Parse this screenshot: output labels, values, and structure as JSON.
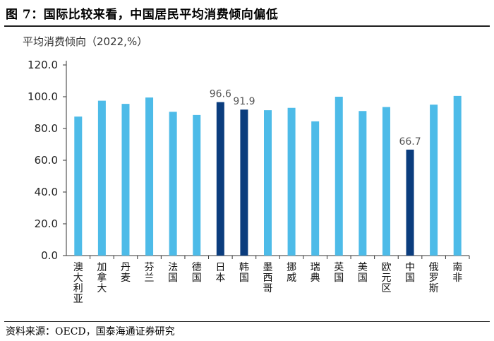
{
  "figure": {
    "title": "图 7：国际比较来看，中国居民平均消费倾向偏低",
    "source": "资料来源：OECD，国泰海通证券研究"
  },
  "chart_data": {
    "type": "bar",
    "title": "",
    "ylabel": "平均消费倾向（2022,%）",
    "xlabel": "",
    "ylim": [
      0,
      120
    ],
    "yticks": [
      0,
      20,
      40,
      60,
      80,
      100,
      120
    ],
    "ytick_labels": [
      "0.0",
      "20.0",
      "40.0",
      "60.0",
      "80.0",
      "100.0",
      "120.0"
    ],
    "categories": [
      "澳大利亚",
      "加拿大",
      "丹麦",
      "芬兰",
      "法国",
      "德国",
      "日本",
      "韩国",
      "墨西哥",
      "挪威",
      "瑞典",
      "英国",
      "美国",
      "欧元区",
      "中国",
      "俄罗斯",
      "南非"
    ],
    "values": [
      87.5,
      97.5,
      95.5,
      99.5,
      90.5,
      88.5,
      96.6,
      91.9,
      91.5,
      93.0,
      84.5,
      100.0,
      91.0,
      93.5,
      66.7,
      95.0,
      100.5
    ],
    "highlight": [
      false,
      false,
      false,
      false,
      false,
      false,
      true,
      true,
      false,
      false,
      false,
      false,
      false,
      false,
      true,
      false,
      false
    ],
    "data_labels": [
      "",
      "",
      "",
      "",
      "",
      "",
      "96.6",
      "91.9",
      "",
      "",
      "",
      "",
      "",
      "",
      "66.7",
      "",
      ""
    ],
    "colors": {
      "bar": "#4dbbe8",
      "highlight": "#0b3d7e",
      "axis": "#333333",
      "label": "#555555"
    }
  }
}
